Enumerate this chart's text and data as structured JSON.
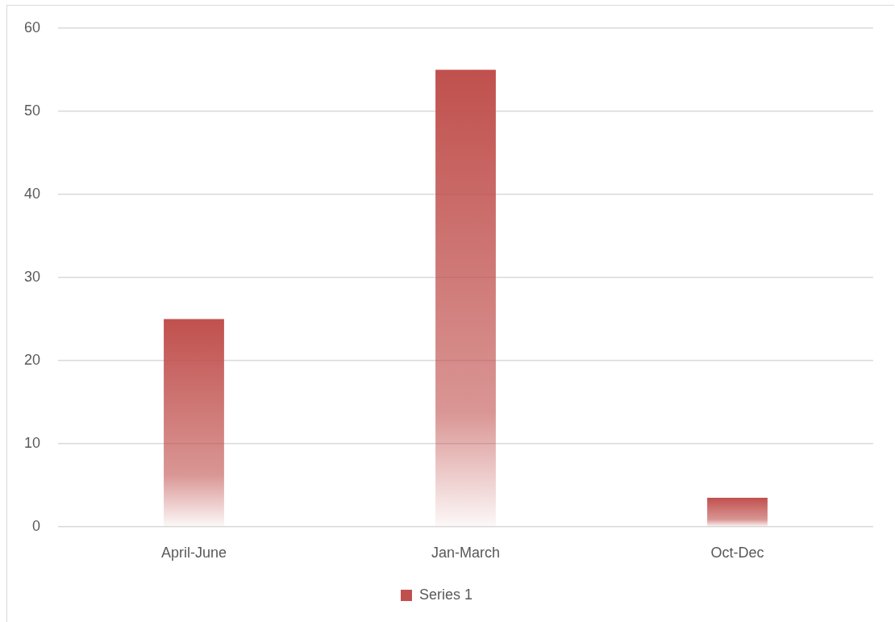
{
  "chart_data": {
    "type": "bar",
    "categories": [
      "April-June",
      "Jan-March",
      "Oct-Dec"
    ],
    "series": [
      {
        "name": "Series 1",
        "color": "#c0504d",
        "values": [
          25,
          55,
          3.5
        ]
      }
    ],
    "ylim": [
      0,
      60
    ],
    "yticks": [
      0,
      10,
      20,
      30,
      40,
      50,
      60
    ],
    "grid": "y",
    "legend": "bottom"
  }
}
